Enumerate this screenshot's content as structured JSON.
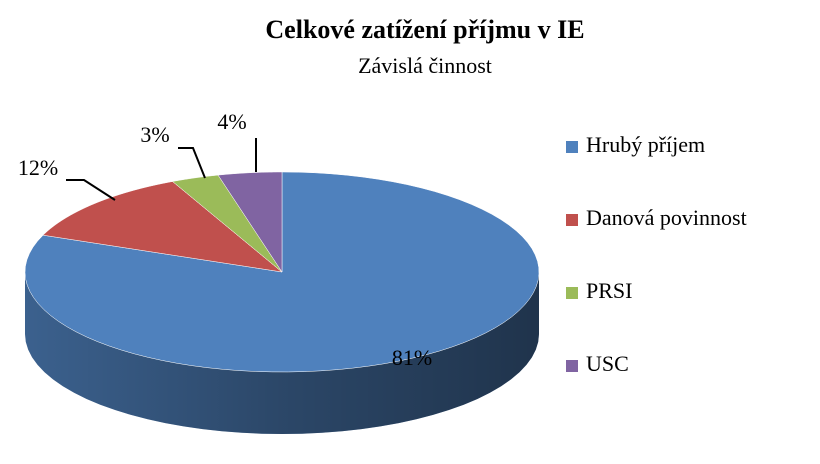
{
  "chart_data": {
    "type": "pie3d",
    "title": "Celkové zatížení příjmu v IE",
    "subtitle": "Závislá činnost",
    "categories": [
      "Hrubý příjem",
      "Danová povinnost",
      "PRSI",
      "USC"
    ],
    "values": [
      81,
      12,
      3,
      4
    ],
    "value_labels": [
      "81%",
      "12%",
      "3%",
      "4%"
    ],
    "colors": [
      "#4f81bd",
      "#c0504d",
      "#9bbb59",
      "#8064a2"
    ],
    "legend": "right"
  }
}
